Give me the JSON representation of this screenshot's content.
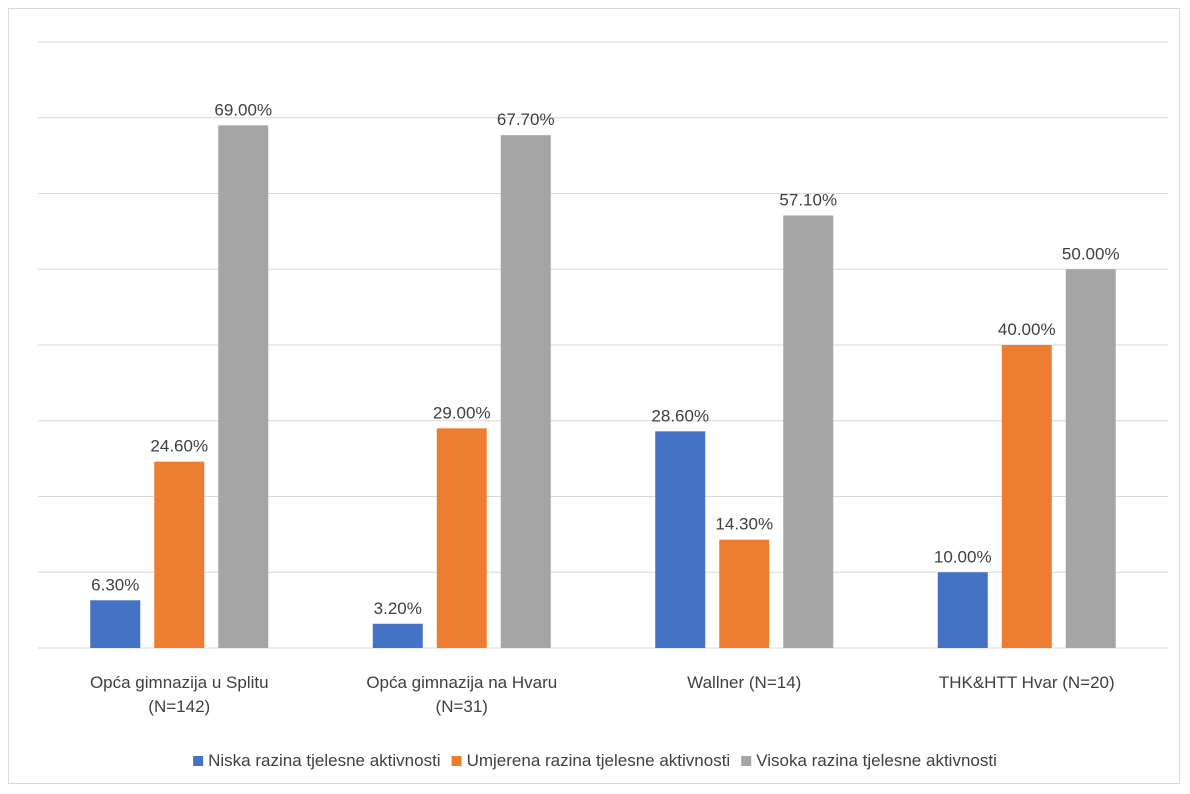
{
  "chart_data": {
    "type": "bar",
    "categories": [
      [
        "Opća gimnazija u Splitu",
        "(N=142)"
      ],
      [
        "Opća gimnazija na Hvaru",
        "(N=31)"
      ],
      [
        "Wallner (N=14)"
      ],
      [
        "THK&HTT Hvar (N=20)"
      ]
    ],
    "series": [
      {
        "name": "Niska razina tjelesne aktivnosti",
        "color": "#4472c4",
        "values": [
          6.3,
          3.2,
          28.6,
          10.0
        ],
        "labels": [
          "6.30%",
          "3.20%",
          "28.60%",
          "10.00%"
        ]
      },
      {
        "name": "Umjerena razina tjelesne aktivnosti",
        "color": "#ed7d31",
        "values": [
          24.6,
          29.0,
          14.3,
          40.0
        ],
        "labels": [
          "24.60%",
          "29.00%",
          "14.30%",
          "40.00%"
        ]
      },
      {
        "name": "Visoka razina tjelesne aktivnosti",
        "color": "#a5a5a5",
        "values": [
          69.0,
          67.7,
          57.1,
          50.0
        ],
        "labels": [
          "69.00%",
          "67.70%",
          "57.10%",
          "50.00%"
        ]
      }
    ],
    "ylim": [
      0,
      80
    ],
    "grid": true,
    "legend": "bottom"
  }
}
